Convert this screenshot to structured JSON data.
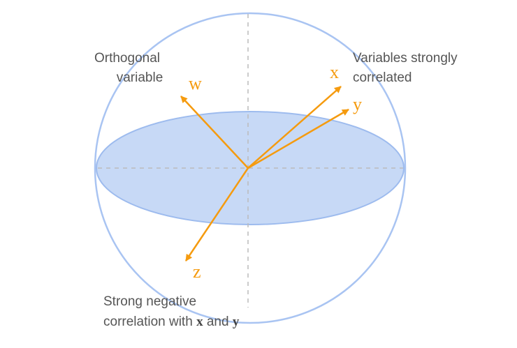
{
  "colors": {
    "sphere_outline": "#a9c4f2",
    "disk_fill": "#c7d9f6",
    "disk_stroke": "#9dbbee",
    "axis_dash": "#bbbbbb",
    "vector": "#f59b0f",
    "annotation_text": "#555555"
  },
  "annotations": {
    "orthogonal_line1": "Orthogonal",
    "orthogonal_line2": "variable",
    "correlated_line1": "Variables strongly",
    "correlated_line2": "correlated",
    "negative_line1": "Strong negative",
    "negative_line2_prefix": "correlation with ",
    "negative_var1": "x",
    "negative_and": " and ",
    "negative_var2": "y"
  },
  "vectors": [
    {
      "id": "x",
      "label": "x"
    },
    {
      "id": "y",
      "label": "y"
    },
    {
      "id": "w",
      "label": "w"
    },
    {
      "id": "z",
      "label": "z"
    }
  ]
}
